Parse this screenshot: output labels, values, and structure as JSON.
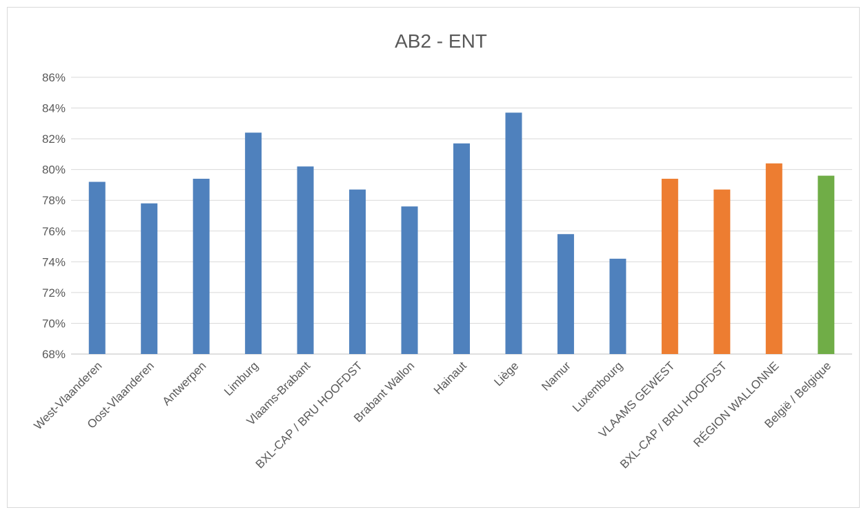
{
  "chart_data": {
    "type": "bar",
    "title": "AB2 - ENT",
    "xlabel": "",
    "ylabel": "",
    "ylim": [
      68,
      86
    ],
    "y_ticks": [
      "68%",
      "70%",
      "72%",
      "74%",
      "76%",
      "78%",
      "80%",
      "82%",
      "84%",
      "86%"
    ],
    "y_tick_values": [
      68,
      70,
      72,
      74,
      76,
      78,
      80,
      82,
      84,
      86
    ],
    "grid": true,
    "legend": "none",
    "categories": [
      "West-Vlaanderen",
      "Oost-Vlaanderen",
      "Antwerpen",
      "Limburg",
      "Vlaams-Brabant",
      "BXL-CAP / BRU HOOFDST",
      "Brabant Wallon",
      "Hainaut",
      "Liège",
      "Namur",
      "Luxembourg",
      "VLAAMS GEWEST",
      "BXL-CAP / BRU HOOFDST",
      "RÉGION WALLONNE",
      "België / Belgique"
    ],
    "values": [
      79.2,
      77.8,
      79.4,
      82.4,
      80.2,
      78.7,
      77.6,
      81.7,
      83.7,
      75.8,
      74.2,
      79.4,
      78.7,
      80.4,
      79.6
    ],
    "colors": [
      "#4f81bd",
      "#4f81bd",
      "#4f81bd",
      "#4f81bd",
      "#4f81bd",
      "#4f81bd",
      "#4f81bd",
      "#4f81bd",
      "#4f81bd",
      "#4f81bd",
      "#4f81bd",
      "#ed7d31",
      "#ed7d31",
      "#ed7d31",
      "#70ad47"
    ]
  }
}
